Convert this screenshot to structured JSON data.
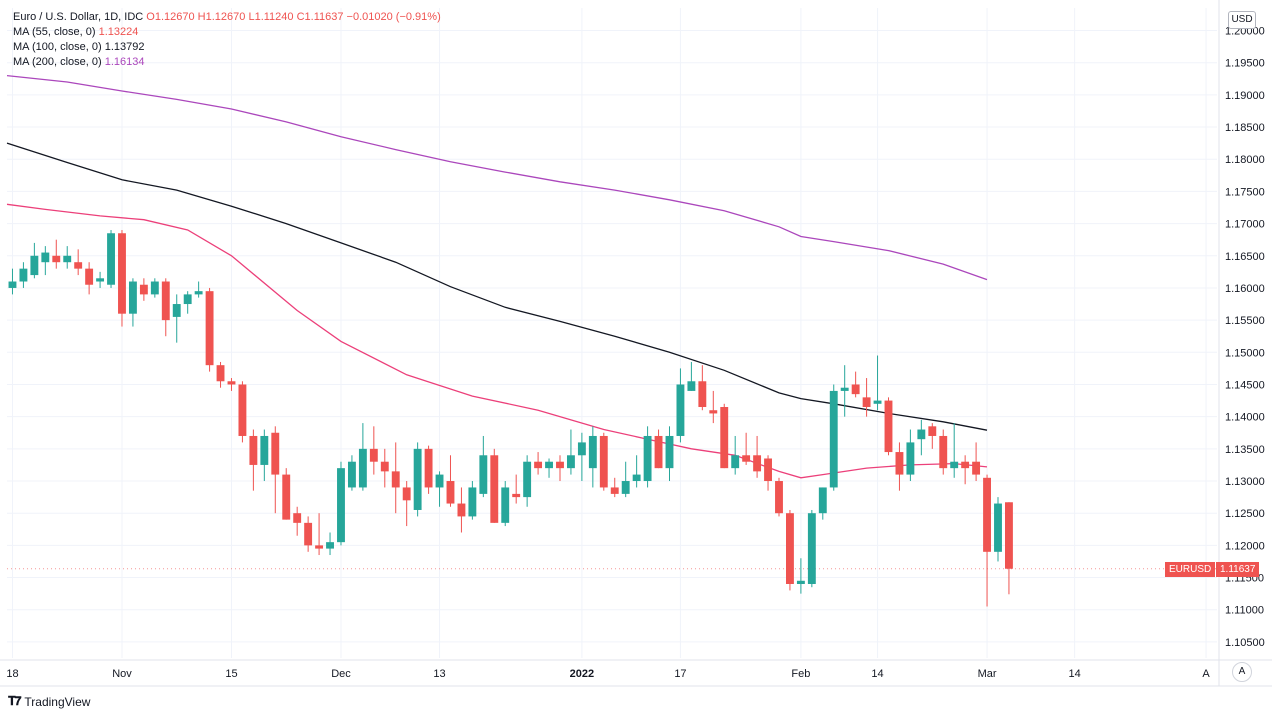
{
  "legend": {
    "symbol": "Euro / U.S. Dollar, 1D, IDC",
    "ohlc": {
      "o": "O1.12670",
      "h": "H1.12670",
      "l": "L1.11240",
      "c": "C1.11637",
      "chg": "−0.01020 (−0.91%)"
    },
    "ma55": {
      "label": "MA (55, close, 0)",
      "value": "1.13224"
    },
    "ma100": {
      "label": "MA (100, close, 0)",
      "value": "1.13792"
    },
    "ma200": {
      "label": "MA (200, close, 0)",
      "value": "1.16134"
    }
  },
  "currency_badge": "USD",
  "price_tag": {
    "symbol": "EURUSD",
    "value": "1.11637"
  },
  "auto_button": "A",
  "brand": "TradingView",
  "colors": {
    "up": "#26a69a",
    "down": "#ef5350",
    "ma55": "#ec407a",
    "ma100": "#131722",
    "ma200": "#ab47bc",
    "grid": "#f0f3fa",
    "axis_text": "#131722"
  },
  "chart_data": {
    "type": "candlestick",
    "title": "Euro / U.S. Dollar, 1D, IDC",
    "ylim": [
      1.1025,
      1.2035
    ],
    "y_ticks": [
      "1.10500",
      "1.11000",
      "1.11500",
      "1.12000",
      "1.12500",
      "1.13000",
      "1.13500",
      "1.14000",
      "1.14500",
      "1.15000",
      "1.15500",
      "1.16000",
      "1.16500",
      "1.17000",
      "1.17500",
      "1.18000",
      "1.18500",
      "1.19000",
      "1.19500",
      "1.20000"
    ],
    "x_ticks": [
      {
        "label": "18",
        "index": 0
      },
      {
        "label": "Nov",
        "index": 10
      },
      {
        "label": "15",
        "index": 20
      },
      {
        "label": "Dec",
        "index": 30
      },
      {
        "label": "13",
        "index": 39
      },
      {
        "label": "2022",
        "index": 52
      },
      {
        "label": "17",
        "index": 61
      },
      {
        "label": "Feb",
        "index": 72
      },
      {
        "label": "14",
        "index": 79
      },
      {
        "label": "Mar",
        "index": 89
      },
      {
        "label": "14",
        "index": 97
      },
      {
        "label": "A",
        "index": 109
      }
    ],
    "x_domain": [
      -0.5,
      110
    ],
    "candles": [
      [
        1.16,
        1.163,
        1.159,
        1.161
      ],
      [
        1.161,
        1.164,
        1.16,
        1.163
      ],
      [
        1.162,
        1.167,
        1.1615,
        1.165
      ],
      [
        1.164,
        1.1665,
        1.162,
        1.1655
      ],
      [
        1.165,
        1.1675,
        1.163,
        1.164
      ],
      [
        1.164,
        1.1665,
        1.163,
        1.165
      ],
      [
        1.164,
        1.166,
        1.162,
        1.163
      ],
      [
        1.163,
        1.164,
        1.159,
        1.1605
      ],
      [
        1.161,
        1.1625,
        1.16,
        1.1615
      ],
      [
        1.1605,
        1.169,
        1.16,
        1.1685
      ],
      [
        1.1685,
        1.169,
        1.154,
        1.156
      ],
      [
        1.156,
        1.1615,
        1.154,
        1.161
      ],
      [
        1.1605,
        1.1615,
        1.158,
        1.159
      ],
      [
        1.159,
        1.1615,
        1.1585,
        1.161
      ],
      [
        1.161,
        1.1615,
        1.1525,
        1.155
      ],
      [
        1.1555,
        1.159,
        1.1515,
        1.1575
      ],
      [
        1.1575,
        1.1595,
        1.156,
        1.159
      ],
      [
        1.159,
        1.161,
        1.1585,
        1.1595
      ],
      [
        1.1595,
        1.16,
        1.147,
        1.148
      ],
      [
        1.148,
        1.1485,
        1.1445,
        1.1455
      ],
      [
        1.1455,
        1.146,
        1.144,
        1.145
      ],
      [
        1.145,
        1.1455,
        1.136,
        1.137
      ],
      [
        1.137,
        1.138,
        1.1285,
        1.1325
      ],
      [
        1.1325,
        1.138,
        1.13,
        1.137
      ],
      [
        1.1375,
        1.1385,
        1.125,
        1.131
      ],
      [
        1.131,
        1.132,
        1.124,
        1.124
      ],
      [
        1.125,
        1.126,
        1.1215,
        1.1235
      ],
      [
        1.1235,
        1.1245,
        1.119,
        1.12
      ],
      [
        1.12,
        1.125,
        1.1185,
        1.1195
      ],
      [
        1.1195,
        1.122,
        1.1185,
        1.1205
      ],
      [
        1.1205,
        1.133,
        1.12,
        1.132
      ],
      [
        1.129,
        1.134,
        1.1285,
        1.133
      ],
      [
        1.129,
        1.139,
        1.1285,
        1.135
      ],
      [
        1.135,
        1.1385,
        1.131,
        1.133
      ],
      [
        1.133,
        1.135,
        1.129,
        1.1315
      ],
      [
        1.1315,
        1.136,
        1.125,
        1.129
      ],
      [
        1.129,
        1.13,
        1.123,
        1.127
      ],
      [
        1.1255,
        1.136,
        1.1245,
        1.135
      ],
      [
        1.135,
        1.1355,
        1.128,
        1.129
      ],
      [
        1.129,
        1.1315,
        1.126,
        1.131
      ],
      [
        1.13,
        1.134,
        1.126,
        1.1265
      ],
      [
        1.1265,
        1.129,
        1.122,
        1.1245
      ],
      [
        1.1245,
        1.13,
        1.124,
        1.129
      ],
      [
        1.128,
        1.137,
        1.1275,
        1.134
      ],
      [
        1.134,
        1.135,
        1.1235,
        1.1235
      ],
      [
        1.1235,
        1.13,
        1.123,
        1.129
      ],
      [
        1.128,
        1.131,
        1.1265,
        1.1275
      ],
      [
        1.1275,
        1.134,
        1.126,
        1.133
      ],
      [
        1.133,
        1.1345,
        1.131,
        1.132
      ],
      [
        1.132,
        1.1335,
        1.1305,
        1.133
      ],
      [
        1.133,
        1.134,
        1.13,
        1.132
      ],
      [
        1.132,
        1.138,
        1.131,
        1.134
      ],
      [
        1.134,
        1.1375,
        1.13,
        1.136
      ],
      [
        1.132,
        1.1385,
        1.129,
        1.137
      ],
      [
        1.137,
        1.1375,
        1.1285,
        1.129
      ],
      [
        1.129,
        1.1305,
        1.1275,
        1.128
      ],
      [
        1.128,
        1.133,
        1.1275,
        1.13
      ],
      [
        1.13,
        1.134,
        1.129,
        1.131
      ],
      [
        1.13,
        1.1385,
        1.129,
        1.137
      ],
      [
        1.137,
        1.138,
        1.132,
        1.132
      ],
      [
        1.132,
        1.1385,
        1.13,
        1.137
      ],
      [
        1.137,
        1.1475,
        1.136,
        1.145
      ],
      [
        1.144,
        1.1485,
        1.144,
        1.1455
      ],
      [
        1.1455,
        1.148,
        1.141,
        1.1415
      ],
      [
        1.141,
        1.144,
        1.139,
        1.1405
      ],
      [
        1.1415,
        1.142,
        1.132,
        1.132
      ],
      [
        1.132,
        1.137,
        1.131,
        1.134
      ],
      [
        1.134,
        1.1375,
        1.1325,
        1.133
      ],
      [
        1.134,
        1.137,
        1.1305,
        1.1315
      ],
      [
        1.1335,
        1.134,
        1.1285,
        1.13
      ],
      [
        1.13,
        1.1305,
        1.1245,
        1.125
      ],
      [
        1.125,
        1.1255,
        1.113,
        1.114
      ],
      [
        1.114,
        1.118,
        1.1125,
        1.1145
      ],
      [
        1.114,
        1.1255,
        1.1135,
        1.125
      ],
      [
        1.125,
        1.129,
        1.124,
        1.129
      ],
      [
        1.129,
        1.145,
        1.1285,
        1.144
      ],
      [
        1.144,
        1.148,
        1.14,
        1.1445
      ],
      [
        1.145,
        1.147,
        1.143,
        1.1435
      ],
      [
        1.143,
        1.146,
        1.14,
        1.1415
      ],
      [
        1.142,
        1.1495,
        1.141,
        1.1425
      ],
      [
        1.1425,
        1.143,
        1.134,
        1.1345
      ],
      [
        1.1345,
        1.136,
        1.1285,
        1.131
      ],
      [
        1.131,
        1.138,
        1.13,
        1.136
      ],
      [
        1.1365,
        1.1395,
        1.134,
        1.138
      ],
      [
        1.1385,
        1.139,
        1.135,
        1.137
      ],
      [
        1.137,
        1.138,
        1.131,
        1.132
      ],
      [
        1.132,
        1.139,
        1.1305,
        1.133
      ],
      [
        1.133,
        1.134,
        1.1295,
        1.132
      ],
      [
        1.133,
        1.136,
        1.13,
        1.131
      ],
      [
        1.1305,
        1.131,
        1.1105,
        1.119
      ],
      [
        1.119,
        1.1275,
        1.1175,
        1.1265
      ],
      [
        1.1267,
        1.1267,
        1.1124,
        1.11637
      ]
    ],
    "series": [
      {
        "name": "MA (55, close, 0)",
        "x": [
          -0.5,
          3,
          8,
          12,
          16,
          20,
          26,
          30,
          36,
          42,
          48,
          54,
          58,
          62,
          66,
          70,
          72,
          74,
          78,
          82,
          86,
          89
        ],
        "values": [
          1.173,
          1.1722,
          1.1712,
          1.1706,
          1.169,
          1.165,
          1.1565,
          1.1517,
          1.1465,
          1.1432,
          1.141,
          1.138,
          1.1365,
          1.135,
          1.134,
          1.1315,
          1.1305,
          1.131,
          1.132,
          1.1325,
          1.1327,
          1.1322
        ]
      },
      {
        "name": "MA (100, close, 0)",
        "x": [
          -0.5,
          5,
          10,
          15,
          20,
          25,
          30,
          35,
          40,
          45,
          50,
          55,
          60,
          65,
          70,
          72,
          75,
          80,
          85,
          89
        ],
        "values": [
          1.1825,
          1.1795,
          1.1768,
          1.1752,
          1.1727,
          1.17,
          1.167,
          1.164,
          1.1602,
          1.157,
          1.1548,
          1.1525,
          1.15,
          1.1472,
          1.1437,
          1.1428,
          1.142,
          1.1405,
          1.1392,
          1.1379
        ]
      },
      {
        "name": "MA (200, close, 0)",
        "x": [
          -0.5,
          5,
          10,
          15,
          20,
          25,
          30,
          35,
          40,
          45,
          50,
          55,
          60,
          65,
          70,
          72,
          75,
          80,
          85,
          89
        ],
        "values": [
          1.193,
          1.192,
          1.1906,
          1.1893,
          1.1878,
          1.1858,
          1.1835,
          1.1815,
          1.1796,
          1.178,
          1.1765,
          1.1752,
          1.1737,
          1.172,
          1.1695,
          1.168,
          1.1672,
          1.1658,
          1.1637,
          1.1613
        ]
      }
    ]
  }
}
